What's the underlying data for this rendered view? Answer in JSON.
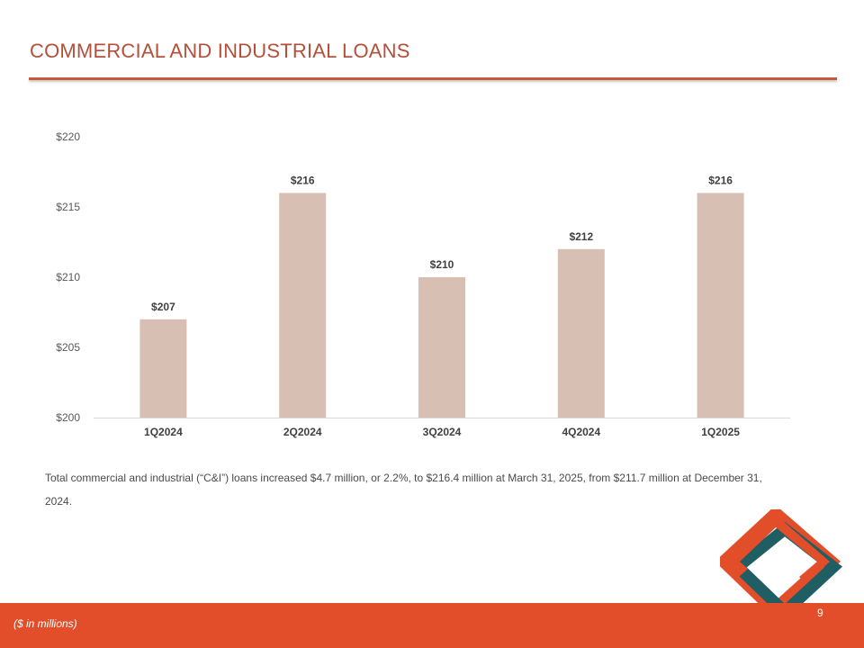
{
  "slide": {
    "title": "COMMERCIAL AND INDUSTRIAL LOANS",
    "footnote": "Total commercial and industrial (“C&I”) loans increased $4.7 million, or 2.2%, to $216.4 million at March 31, 2025, from $211.7 million at December 31, 2024.",
    "units_note": "($ in millions)",
    "page_number": "9"
  },
  "colors": {
    "title": "#b4503a",
    "rule": "#c55a3a",
    "bar": "#d8bfb4",
    "footer": "#e24e2a",
    "logo_outer": "#e24e2a",
    "logo_inner": "#1f5e63"
  },
  "chart_data": {
    "type": "bar",
    "categories": [
      "1Q2024",
      "2Q2024",
      "3Q2024",
      "4Q2024",
      "1Q2025"
    ],
    "values": [
      207,
      216,
      210,
      212,
      216
    ],
    "data_labels": [
      "$207",
      "$216",
      "$210",
      "$212",
      "$216"
    ],
    "ylim": [
      200,
      220
    ],
    "yticks": [
      200,
      205,
      210,
      215,
      220
    ],
    "ytick_labels": [
      "$200",
      "$205",
      "$210",
      "$215",
      "$220"
    ],
    "grid": false,
    "legend": "none"
  }
}
